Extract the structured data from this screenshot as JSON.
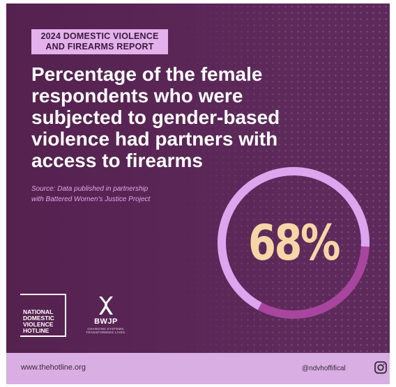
{
  "report_badge": {
    "line1": "2024 DOMESTIC VIOLENCE",
    "line2": "AND FIREARMS REPORT"
  },
  "headline": "Percentage of the female respondents who were subjected to gender-based violence had partners with access to firearms",
  "source": {
    "line1": "Source: Data published in partnership",
    "line2": "with Battered Women's Justice Project"
  },
  "stat": {
    "value_text": "68%",
    "fraction": 0.68,
    "colors": {
      "highlight": "#dca5ee",
      "remainder": "#a8459e",
      "number": "#f6d6a6"
    }
  },
  "logos": {
    "ndvh_lines": [
      "NATIONAL",
      "DOMESTIC",
      "VIOLENCE",
      "HOTLINE"
    ],
    "bwjp_name": "BWJP",
    "bwjp_tagline": "CHANGING SYSTEMS. TRANSFORMING LIVES."
  },
  "footer": {
    "website": "www.thehotline.org",
    "handle": "@ndvhoffifical",
    "social_icon": "instagram-icon"
  },
  "colors": {
    "background": "#5e2a5b",
    "badge": "#e4b1ec",
    "footer": "#d8aee3"
  }
}
